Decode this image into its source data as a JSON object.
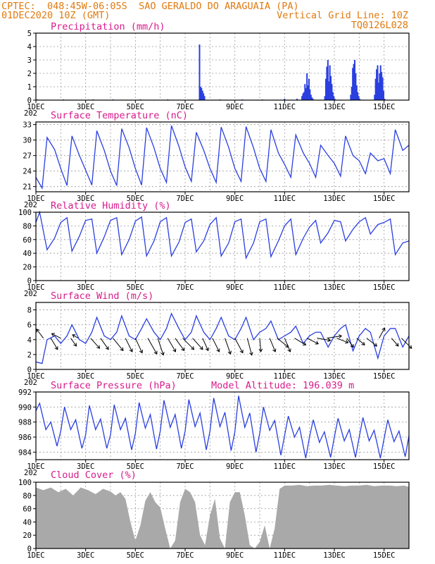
{
  "header": {
    "line1_left": "CPTEC:  048:45W-06:05S  SAO GERALDO DO ARAGUAIA (PA)",
    "line2_left": "01DEC2020 10Z (GMT)",
    "line2_right": "Vertical Grid Line: 10Z",
    "line3_right": "TQ0126L028"
  },
  "colors": {
    "header": "#e07a10",
    "title": "#d81b8c",
    "series": "#2a3fe0",
    "cloud": "#a9a9a9",
    "grid": "#9a9a9a"
  },
  "x_axis": {
    "days": [
      1,
      16
    ],
    "ticks": [
      {
        "day": 1,
        "label": "1DEC"
      },
      {
        "day": 3,
        "label": "3DEC"
      },
      {
        "day": 5,
        "label": "5DEC"
      },
      {
        "day": 7,
        "label": "7DEC"
      },
      {
        "day": 9,
        "label": "9DEC"
      },
      {
        "day": 11,
        "label": "11DEC"
      },
      {
        "day": 13,
        "label": "13DEC"
      },
      {
        "day": 15,
        "label": "15DEC"
      }
    ],
    "grid_days": [
      2,
      3,
      4,
      5,
      6,
      7,
      8,
      9,
      10,
      11,
      12,
      13,
      14,
      15
    ],
    "year_fragment": "202"
  },
  "chart_data": [
    {
      "type": "bar",
      "title": "Precipitation (mm/h)",
      "ylim": [
        0,
        5
      ],
      "yticks": [
        0,
        1,
        2,
        3,
        4,
        5
      ],
      "bars": [
        [
          1.05,
          0.05
        ],
        [
          2.1,
          0.05
        ],
        [
          3.3,
          0.05
        ],
        [
          4.1,
          0.05
        ],
        [
          5.2,
          0.05
        ],
        [
          6.3,
          0.05
        ],
        [
          7.58,
          4.15
        ],
        [
          7.62,
          1.0
        ],
        [
          7.66,
          0.9
        ],
        [
          7.7,
          0.7
        ],
        [
          7.74,
          0.5
        ],
        [
          7.78,
          0.3
        ],
        [
          8.4,
          0.05
        ],
        [
          9.3,
          0.05
        ],
        [
          10.1,
          0.05
        ],
        [
          11.0,
          0.1
        ],
        [
          11.5,
          0.1
        ],
        [
          11.7,
          0.3
        ],
        [
          11.74,
          0.5
        ],
        [
          11.78,
          0.6
        ],
        [
          11.82,
          1.2
        ],
        [
          11.86,
          0.9
        ],
        [
          11.9,
          2.0
        ],
        [
          11.94,
          1.1
        ],
        [
          11.98,
          1.6
        ],
        [
          12.02,
          0.8
        ],
        [
          12.06,
          0.4
        ],
        [
          12.1,
          0.2
        ],
        [
          12.14,
          0.1
        ],
        [
          12.62,
          0.3
        ],
        [
          12.66,
          1.6
        ],
        [
          12.7,
          2.5
        ],
        [
          12.74,
          3.0
        ],
        [
          12.78,
          1.4
        ],
        [
          12.82,
          2.6
        ],
        [
          12.86,
          1.8
        ],
        [
          12.9,
          1.2
        ],
        [
          12.94,
          0.6
        ],
        [
          12.98,
          0.3
        ],
        [
          13.02,
          0.1
        ],
        [
          13.66,
          0.4
        ],
        [
          13.7,
          1.0
        ],
        [
          13.74,
          2.4
        ],
        [
          13.78,
          2.7
        ],
        [
          13.82,
          3.0
        ],
        [
          13.86,
          2.0
        ],
        [
          13.9,
          1.1
        ],
        [
          13.94,
          0.6
        ],
        [
          13.98,
          0.3
        ],
        [
          14.02,
          0.1
        ],
        [
          14.62,
          0.4
        ],
        [
          14.66,
          1.6
        ],
        [
          14.7,
          2.3
        ],
        [
          14.74,
          2.6
        ],
        [
          14.78,
          1.3
        ],
        [
          14.82,
          2.0
        ],
        [
          14.86,
          2.6
        ],
        [
          14.9,
          2.1
        ],
        [
          14.94,
          1.7
        ],
        [
          14.98,
          0.7
        ],
        [
          15.02,
          0.1
        ]
      ]
    },
    {
      "type": "line",
      "title": "Surface Temperature (nC)",
      "ylim": [
        20,
        33.5
      ],
      "yticks": [
        21,
        24,
        27,
        30,
        33
      ],
      "x": [
        1.0,
        1.25,
        1.45,
        1.75,
        2.0,
        2.25,
        2.45,
        2.75,
        3.0,
        3.25,
        3.45,
        3.75,
        4.0,
        4.25,
        4.45,
        4.75,
        5.0,
        5.25,
        5.45,
        5.75,
        6.0,
        6.25,
        6.45,
        6.75,
        7.0,
        7.25,
        7.45,
        7.75,
        8.0,
        8.25,
        8.45,
        8.75,
        9.0,
        9.25,
        9.45,
        9.75,
        10.0,
        10.25,
        10.45,
        10.75,
        11.0,
        11.25,
        11.45,
        11.75,
        12.0,
        12.25,
        12.45,
        12.75,
        13.0,
        13.25,
        13.45,
        13.75,
        14.0,
        14.25,
        14.45,
        14.75,
        15.0,
        15.25,
        15.45,
        15.75,
        16.0
      ],
      "y": [
        22.8,
        20.7,
        30.5,
        28.2,
        24.5,
        21.2,
        30.8,
        27.0,
        24.2,
        21.3,
        31.8,
        28.0,
        24.0,
        21.2,
        32.2,
        28.5,
        24.5,
        21.3,
        32.4,
        28.5,
        24.5,
        21.8,
        32.8,
        28.8,
        24.8,
        22.0,
        31.5,
        28.0,
        24.5,
        21.8,
        32.5,
        28.6,
        24.5,
        22.0,
        32.6,
        28.5,
        24.5,
        22.0,
        32.0,
        27.5,
        25.3,
        22.8,
        31.0,
        27.5,
        25.5,
        22.8,
        29.0,
        27.0,
        25.5,
        23.0,
        30.8,
        27.0,
        26.0,
        23.5,
        27.5,
        26.0,
        26.4,
        23.5,
        32.0,
        28.0,
        29.0
      ]
    },
    {
      "type": "line",
      "title": "Relative Humidity (%)",
      "ylim": [
        0,
        100
      ],
      "yticks": [
        0,
        20,
        40,
        60,
        80,
        100
      ],
      "x": [
        1.0,
        1.15,
        1.45,
        1.75,
        2.0,
        2.25,
        2.45,
        2.75,
        3.0,
        3.25,
        3.45,
        3.75,
        4.0,
        4.25,
        4.45,
        4.75,
        5.0,
        5.25,
        5.45,
        5.75,
        6.0,
        6.25,
        6.45,
        6.75,
        7.0,
        7.25,
        7.45,
        7.75,
        8.0,
        8.25,
        8.45,
        8.75,
        9.0,
        9.25,
        9.45,
        9.75,
        10.0,
        10.25,
        10.45,
        10.75,
        11.0,
        11.25,
        11.45,
        11.75,
        12.0,
        12.25,
        12.45,
        12.75,
        13.0,
        13.25,
        13.45,
        13.75,
        14.0,
        14.25,
        14.45,
        14.75,
        15.0,
        15.25,
        15.45,
        15.75,
        16.0
      ],
      "y": [
        85,
        100,
        45,
        62,
        85,
        92,
        43,
        65,
        88,
        90,
        40,
        64,
        88,
        92,
        38,
        60,
        87,
        93,
        36,
        58,
        86,
        92,
        36,
        56,
        85,
        90,
        42,
        58,
        82,
        92,
        36,
        55,
        86,
        90,
        33,
        55,
        86,
        90,
        35,
        58,
        80,
        90,
        38,
        62,
        78,
        88,
        55,
        70,
        88,
        86,
        58,
        75,
        86,
        92,
        68,
        82,
        85,
        90,
        38,
        55,
        58
      ]
    },
    {
      "type": "line",
      "title": "Surface Wind (m/s)",
      "ylim": [
        0,
        9
      ],
      "yticks": [
        0,
        2,
        4,
        6,
        8
      ],
      "x": [
        1.0,
        1.25,
        1.45,
        1.75,
        2.0,
        2.25,
        2.45,
        2.75,
        3.0,
        3.25,
        3.45,
        3.75,
        4.0,
        4.25,
        4.45,
        4.75,
        5.0,
        5.25,
        5.45,
        5.75,
        6.0,
        6.25,
        6.45,
        6.75,
        7.0,
        7.25,
        7.45,
        7.75,
        8.0,
        8.25,
        8.45,
        8.75,
        9.0,
        9.25,
        9.45,
        9.75,
        10.0,
        10.25,
        10.45,
        10.75,
        11.0,
        11.25,
        11.45,
        11.75,
        12.0,
        12.25,
        12.45,
        12.75,
        13.0,
        13.25,
        13.45,
        13.75,
        14.0,
        14.25,
        14.45,
        14.75,
        15.0,
        15.25,
        15.45,
        15.75,
        16.0
      ],
      "y": [
        1.0,
        0.8,
        4.0,
        4.5,
        3.5,
        4.5,
        6.0,
        4.0,
        3.5,
        5.0,
        7.0,
        4.5,
        4.0,
        5.0,
        7.2,
        4.5,
        4.0,
        5.5,
        6.8,
        5.0,
        4.0,
        5.5,
        7.5,
        5.5,
        4.0,
        5.0,
        7.2,
        5.0,
        4.0,
        5.5,
        7.0,
        4.5,
        4.0,
        5.5,
        7.0,
        4.0,
        5.0,
        5.5,
        6.5,
        4.0,
        4.5,
        5.0,
        5.8,
        3.5,
        4.5,
        5.0,
        5.0,
        3.0,
        4.5,
        5.5,
        6.0,
        2.5,
        4.5,
        5.5,
        5.0,
        1.5,
        4.5,
        5.5,
        5.5,
        3.0,
        4.5
      ],
      "vectors": [
        {
          "day": 1.3,
          "u": -0.6,
          "v": 0.8
        },
        {
          "day": 1.6,
          "u": 0.6,
          "v": -1.0
        },
        {
          "day": 2.0,
          "u": -0.8,
          "v": 0.4
        },
        {
          "day": 2.4,
          "u": 0.5,
          "v": -0.7
        },
        {
          "day": 2.7,
          "u": -0.5,
          "v": 0.3
        },
        {
          "day": 3.2,
          "u": 0.8,
          "v": -0.9
        },
        {
          "day": 3.6,
          "u": 0.7,
          "v": -1.0
        },
        {
          "day": 4.1,
          "u": 0.9,
          "v": -1.1
        },
        {
          "day": 4.6,
          "u": 0.6,
          "v": -1.2
        },
        {
          "day": 5.0,
          "u": 0.6,
          "v": -1.3
        },
        {
          "day": 5.5,
          "u": 0.8,
          "v": -1.4
        },
        {
          "day": 5.9,
          "u": 0.5,
          "v": -1.5
        },
        {
          "day": 6.3,
          "u": 0.7,
          "v": -1.2
        },
        {
          "day": 6.6,
          "u": 0.8,
          "v": -1.1
        },
        {
          "day": 6.9,
          "u": 1.0,
          "v": -1.0
        },
        {
          "day": 7.3,
          "u": 0.9,
          "v": -1.0
        },
        {
          "day": 7.7,
          "u": 0.5,
          "v": -1.1
        },
        {
          "day": 8.1,
          "u": 0.6,
          "v": -1.2
        },
        {
          "day": 8.6,
          "u": 0.5,
          "v": -1.4
        },
        {
          "day": 9.0,
          "u": 0.7,
          "v": -1.3
        },
        {
          "day": 9.5,
          "u": 0.4,
          "v": -1.5
        },
        {
          "day": 10.0,
          "u": 0.1,
          "v": -1.2
        },
        {
          "day": 10.4,
          "u": 0.5,
          "v": -1.2
        },
        {
          "day": 10.7,
          "u": 1.0,
          "v": -0.8
        },
        {
          "day": 11.0,
          "u": 0.5,
          "v": -1.2
        },
        {
          "day": 11.4,
          "u": 1.0,
          "v": -0.6
        },
        {
          "day": 11.9,
          "u": 1.0,
          "v": -0.5
        },
        {
          "day": 12.3,
          "u": 1.2,
          "v": -0.2
        },
        {
          "day": 12.7,
          "u": 1.3,
          "v": 0.2
        },
        {
          "day": 13.1,
          "u": 1.0,
          "v": -0.4
        },
        {
          "day": 13.5,
          "u": 0.6,
          "v": -0.8
        },
        {
          "day": 13.9,
          "u": 0.7,
          "v": -0.6
        },
        {
          "day": 14.3,
          "u": 0.9,
          "v": -0.7
        },
        {
          "day": 14.8,
          "u": 0.5,
          "v": 0.9
        },
        {
          "day": 15.3,
          "u": 0.6,
          "v": -0.7
        },
        {
          "day": 15.7,
          "u": 0.9,
          "v": -0.9
        }
      ]
    },
    {
      "type": "line",
      "title": "Surface Pressure (hPa)",
      "annotation": "Model Altitude: 196.039 m",
      "ylim": [
        983,
        992
      ],
      "yticks": [
        984,
        986,
        988,
        990,
        992
      ],
      "x": [
        1.0,
        1.15,
        1.4,
        1.6,
        1.85,
        2.0,
        2.15,
        2.4,
        2.6,
        2.85,
        3.0,
        3.15,
        3.4,
        3.6,
        3.85,
        4.0,
        4.15,
        4.4,
        4.6,
        4.85,
        5.0,
        5.15,
        5.4,
        5.6,
        5.85,
        6.0,
        6.15,
        6.4,
        6.6,
        6.85,
        7.0,
        7.15,
        7.4,
        7.6,
        7.85,
        8.0,
        8.15,
        8.4,
        8.6,
        8.85,
        9.0,
        9.15,
        9.4,
        9.6,
        9.85,
        10.0,
        10.15,
        10.4,
        10.6,
        10.85,
        11.0,
        11.15,
        11.4,
        11.6,
        11.85,
        12.0,
        12.15,
        12.4,
        12.6,
        12.85,
        13.0,
        13.15,
        13.4,
        13.6,
        13.85,
        14.0,
        14.15,
        14.4,
        14.6,
        14.85,
        15.0,
        15.15,
        15.4,
        15.6,
        15.85,
        16.0
      ],
      "y": [
        989.5,
        990.5,
        987.0,
        988.0,
        984.8,
        986.8,
        990.0,
        987.0,
        988.3,
        984.5,
        986.3,
        990.2,
        987.0,
        988.4,
        984.5,
        986.3,
        990.3,
        987.0,
        988.5,
        984.3,
        986.5,
        990.6,
        987.2,
        989.0,
        984.4,
        986.8,
        990.9,
        987.3,
        989.0,
        984.5,
        986.8,
        991.0,
        987.4,
        989.2,
        984.3,
        986.8,
        991.2,
        987.4,
        989.3,
        984.2,
        986.7,
        991.5,
        987.3,
        989.2,
        984.0,
        986.5,
        990.0,
        986.9,
        988.2,
        983.6,
        986.2,
        988.8,
        986.0,
        987.3,
        983.2,
        986.0,
        988.3,
        985.3,
        986.7,
        983.3,
        986.0,
        988.5,
        985.5,
        987.0,
        983.3,
        986.0,
        988.6,
        985.5,
        986.9,
        983.2,
        985.8,
        988.3,
        985.4,
        986.8,
        983.4,
        986.2
      ]
    },
    {
      "type": "area",
      "title": "Cloud Cover (%)",
      "ylim": [
        0,
        100
      ],
      "yticks": [
        0,
        20,
        40,
        60,
        80,
        100
      ],
      "x": [
        1.0,
        1.3,
        1.6,
        1.9,
        2.2,
        2.5,
        2.8,
        3.1,
        3.4,
        3.7,
        4.0,
        4.2,
        4.4,
        4.6,
        4.8,
        5.0,
        5.2,
        5.4,
        5.6,
        5.8,
        6.0,
        6.2,
        6.4,
        6.6,
        6.8,
        7.0,
        7.2,
        7.4,
        7.6,
        7.8,
        8.0,
        8.2,
        8.4,
        8.6,
        8.8,
        9.0,
        9.2,
        9.4,
        9.6,
        9.8,
        10.0,
        10.2,
        10.4,
        10.6,
        10.8,
        11.0,
        11.3,
        11.6,
        11.9,
        12.2,
        12.5,
        12.8,
        13.1,
        13.4,
        13.7,
        14.0,
        14.3,
        14.6,
        14.9,
        15.2,
        15.5,
        15.8,
        16.0
      ],
      "y": [
        92,
        88,
        92,
        85,
        90,
        80,
        92,
        88,
        82,
        90,
        86,
        80,
        85,
        75,
        40,
        12,
        35,
        72,
        85,
        70,
        62,
        30,
        0,
        12,
        70,
        90,
        85,
        70,
        20,
        5,
        50,
        75,
        15,
        0,
        70,
        85,
        85,
        50,
        5,
        0,
        10,
        35,
        0,
        30,
        90,
        95,
        95,
        96,
        94,
        95,
        95,
        96,
        95,
        94,
        95,
        95,
        96,
        94,
        95,
        95,
        94,
        95,
        93
      ]
    }
  ]
}
